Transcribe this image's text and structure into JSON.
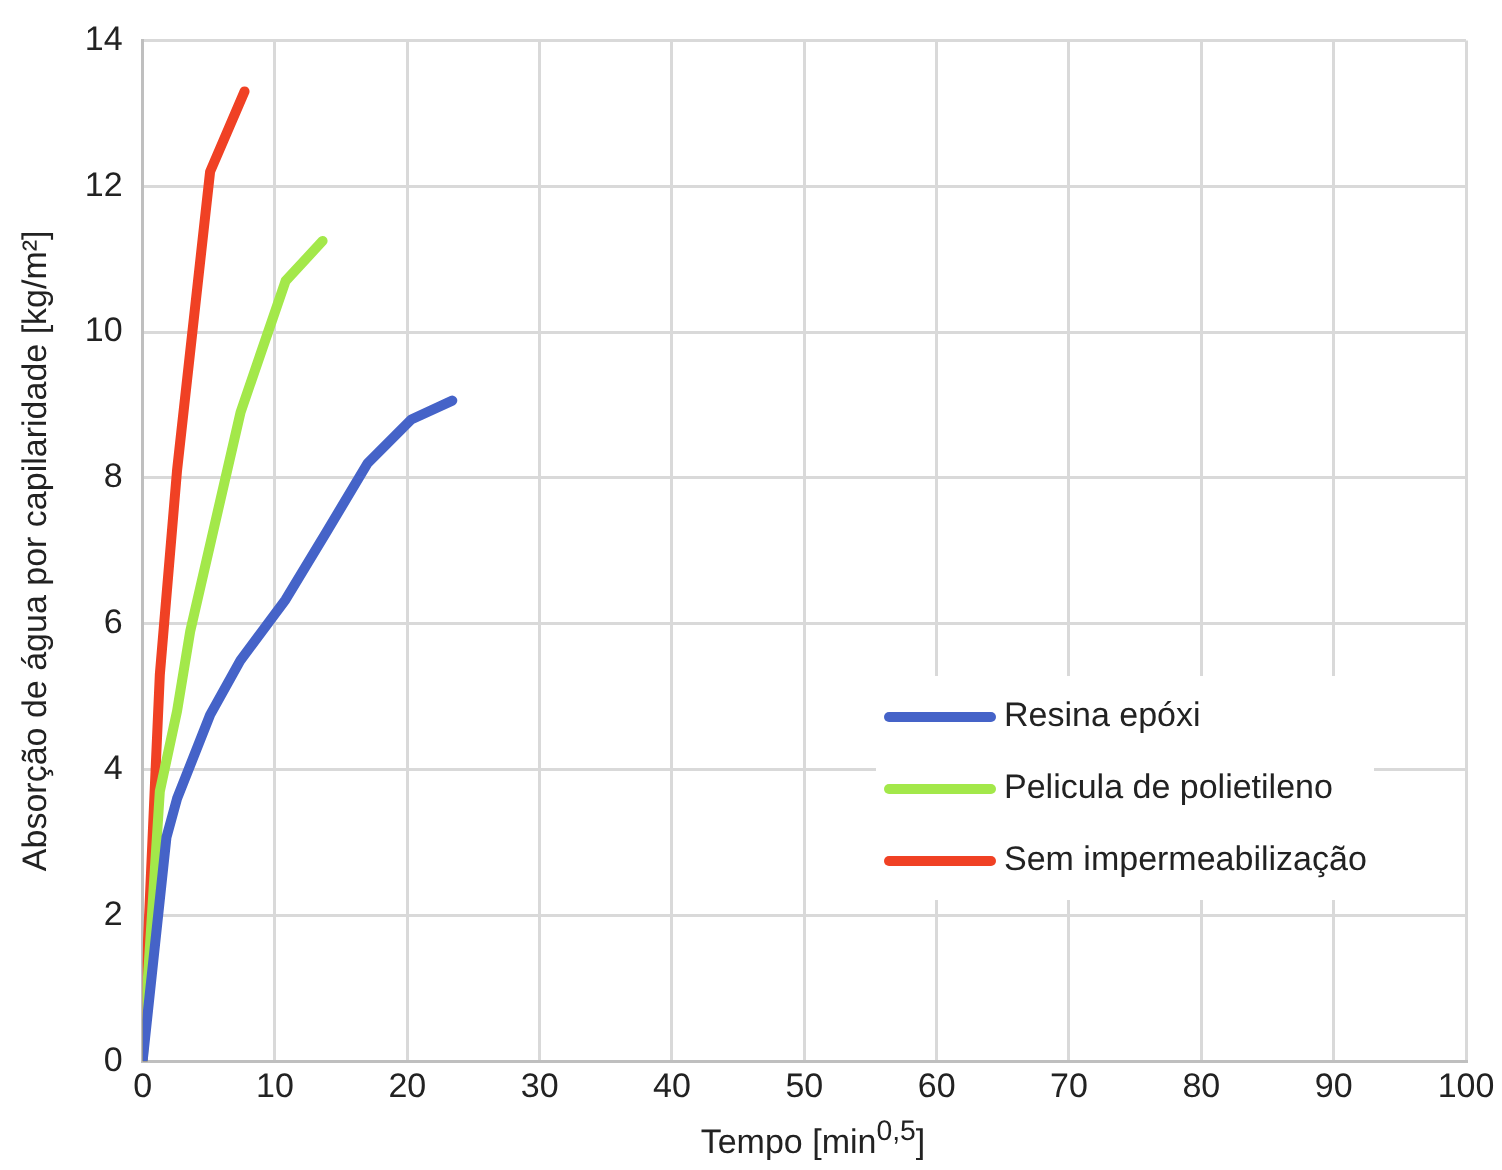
{
  "chart_data": {
    "type": "line",
    "xlabel": "Tempo [min$^{0,5}$]",
    "ylabel": "Absorção de água por capilaridade [kg/m²]",
    "xlim": [
      0,
      100
    ],
    "xticks": [
      0,
      10,
      20,
      30,
      40,
      50,
      60,
      70,
      80,
      90,
      100
    ],
    "ylim": [
      0,
      14
    ],
    "yticks": [
      0,
      2,
      4,
      6,
      8,
      10,
      12,
      14
    ],
    "grid": true,
    "legend": "right",
    "marker": "none",
    "line_style": "solid",
    "series": [
      {
        "name": "Resina epóxi",
        "color": "#4563c8",
        "x": [
          0,
          1.8,
          2.6,
          5.1,
          7.4,
          10.8,
          13.9,
          17,
          20.3,
          23.4
        ],
        "values": [
          0,
          3.07,
          3.6,
          4.75,
          5.5,
          6.33,
          7.26,
          8.2,
          8.8,
          9.06
        ]
      },
      {
        "name": "Pelicula de polietileno",
        "color": "#a3e84a",
        "x": [
          0,
          1.3,
          2.6,
          3.6,
          7.4,
          10.8,
          13.6
        ],
        "values": [
          0,
          3.7,
          4.8,
          5.9,
          8.9,
          10.7,
          11.25
        ]
      },
      {
        "name": "Sem impermeabilização",
        "color": "#f04124",
        "x": [
          0,
          1.3,
          2.6,
          5.1,
          7.7
        ],
        "values": [
          0,
          5.3,
          8.1,
          12.2,
          13.3
        ]
      }
    ]
  }
}
